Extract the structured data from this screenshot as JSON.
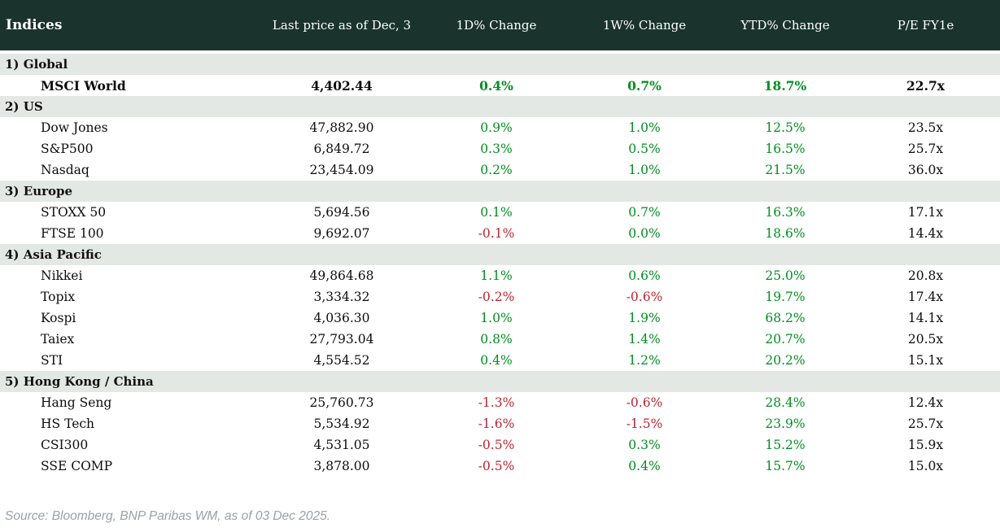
{
  "table": {
    "columns": [
      "Indices",
      "Last price as of Dec, 3",
      "1D% Change",
      "1W% Change",
      "YTD% Change",
      "P/E FY1e"
    ],
    "sections": [
      {
        "label": "1) Global",
        "rows": [
          {
            "name": "MSCI World",
            "price": "4,402.44",
            "d1": "0.4%",
            "w1": "0.7%",
            "ytd": "18.7%",
            "pe": "22.7x",
            "bold": true
          }
        ]
      },
      {
        "label": "2) US",
        "rows": [
          {
            "name": "Dow Jones",
            "price": "47,882.90",
            "d1": "0.9%",
            "w1": "1.0%",
            "ytd": "12.5%",
            "pe": "23.5x"
          },
          {
            "name": "S&P500",
            "price": "6,849.72",
            "d1": "0.3%",
            "w1": "0.5%",
            "ytd": "16.5%",
            "pe": "25.7x"
          },
          {
            "name": "Nasdaq",
            "price": "23,454.09",
            "d1": "0.2%",
            "w1": "1.0%",
            "ytd": "21.5%",
            "pe": "36.0x"
          }
        ]
      },
      {
        "label": "3) Europe",
        "rows": [
          {
            "name": "STOXX 50",
            "price": "5,694.56",
            "d1": "0.1%",
            "w1": "0.7%",
            "ytd": "16.3%",
            "pe": "17.1x"
          },
          {
            "name": "FTSE 100",
            "price": "9,692.07",
            "d1": "-0.1%",
            "w1": "0.0%",
            "ytd": "18.6%",
            "pe": "14.4x"
          }
        ]
      },
      {
        "label": "4) Asia Pacific",
        "rows": [
          {
            "name": "Nikkei",
            "price": "49,864.68",
            "d1": "1.1%",
            "w1": "0.6%",
            "ytd": "25.0%",
            "pe": "20.8x"
          },
          {
            "name": "Topix",
            "price": "3,334.32",
            "d1": "-0.2%",
            "w1": "-0.6%",
            "ytd": "19.7%",
            "pe": "17.4x"
          },
          {
            "name": "Kospi",
            "price": "4,036.30",
            "d1": "1.0%",
            "w1": "1.9%",
            "ytd": "68.2%",
            "pe": "14.1x"
          },
          {
            "name": "Taiex",
            "price": "27,793.04",
            "d1": "0.8%",
            "w1": "1.4%",
            "ytd": "20.7%",
            "pe": "20.5x"
          },
          {
            "name": "STI",
            "price": "4,554.52",
            "d1": "0.4%",
            "w1": "1.2%",
            "ytd": "20.2%",
            "pe": "15.1x"
          }
        ]
      },
      {
        "label": "5) Hong Kong / China",
        "rows": [
          {
            "name": "Hang Seng",
            "price": "25,760.73",
            "d1": "-1.3%",
            "w1": "-0.6%",
            "ytd": "28.4%",
            "pe": "12.4x"
          },
          {
            "name": "HS Tech",
            "price": "5,534.92",
            "d1": "-1.6%",
            "w1": "-1.5%",
            "ytd": "23.9%",
            "pe": "25.7x"
          },
          {
            "name": "CSI300",
            "price": "4,531.05",
            "d1": "-0.5%",
            "w1": "0.3%",
            "ytd": "15.2%",
            "pe": "15.9x"
          },
          {
            "name": "SSE COMP",
            "price": "3,878.00",
            "d1": "-0.5%",
            "w1": "0.4%",
            "ytd": "15.7%",
            "pe": "15.0x"
          }
        ]
      }
    ]
  },
  "footer": {
    "source": "Source: Bloomberg, BNP Paribas WM, as of 03 Dec 2025."
  },
  "colors": {
    "header_bg": "#1a332d",
    "section_band_bg": "#e3e8e4",
    "positive": "#008f1f",
    "negative": "#bf2430"
  },
  "chart_data": {
    "type": "table",
    "title": "Indices",
    "columns": [
      "Indices",
      "Last price as of Dec, 3",
      "1D% Change",
      "1W% Change",
      "YTD% Change",
      "P/E FY1e"
    ],
    "rows": [
      [
        "1) Global",
        "",
        "",
        "",
        "",
        ""
      ],
      [
        "MSCI World",
        "4,402.44",
        "0.4%",
        "0.7%",
        "18.7%",
        "22.7x"
      ],
      [
        "2) US",
        "",
        "",
        "",
        "",
        ""
      ],
      [
        "Dow Jones",
        "47,882.90",
        "0.9%",
        "1.0%",
        "12.5%",
        "23.5x"
      ],
      [
        "S&P500",
        "6,849.72",
        "0.3%",
        "0.5%",
        "16.5%",
        "25.7x"
      ],
      [
        "Nasdaq",
        "23,454.09",
        "0.2%",
        "1.0%",
        "21.5%",
        "36.0x"
      ],
      [
        "3) Europe",
        "",
        "",
        "",
        "",
        ""
      ],
      [
        "STOXX 50",
        "5,694.56",
        "0.1%",
        "0.7%",
        "16.3%",
        "17.1x"
      ],
      [
        "FTSE 100",
        "9,692.07",
        "-0.1%",
        "0.0%",
        "18.6%",
        "14.4x"
      ],
      [
        "4) Asia Pacific",
        "",
        "",
        "",
        "",
        ""
      ],
      [
        "Nikkei",
        "49,864.68",
        "1.1%",
        "0.6%",
        "25.0%",
        "20.8x"
      ],
      [
        "Topix",
        "3,334.32",
        "-0.2%",
        "-0.6%",
        "19.7%",
        "17.4x"
      ],
      [
        "Kospi",
        "4,036.30",
        "1.0%",
        "1.9%",
        "68.2%",
        "14.1x"
      ],
      [
        "Taiex",
        "27,793.04",
        "0.8%",
        "1.4%",
        "20.7%",
        "20.5x"
      ],
      [
        "STI",
        "4,554.52",
        "0.4%",
        "1.2%",
        "20.2%",
        "15.1x"
      ],
      [
        "5) Hong Kong / China",
        "",
        "",
        "",
        "",
        ""
      ],
      [
        "Hang Seng",
        "25,760.73",
        "-1.3%",
        "-0.6%",
        "28.4%",
        "12.4x"
      ],
      [
        "HS Tech",
        "5,534.92",
        "-1.6%",
        "-1.5%",
        "23.9%",
        "25.7x"
      ],
      [
        "CSI300",
        "4,531.05",
        "-0.5%",
        "0.3%",
        "15.2%",
        "15.9x"
      ],
      [
        "SSE COMP",
        "3,878.00",
        "-0.5%",
        "0.4%",
        "15.7%",
        "15.0x"
      ]
    ]
  }
}
